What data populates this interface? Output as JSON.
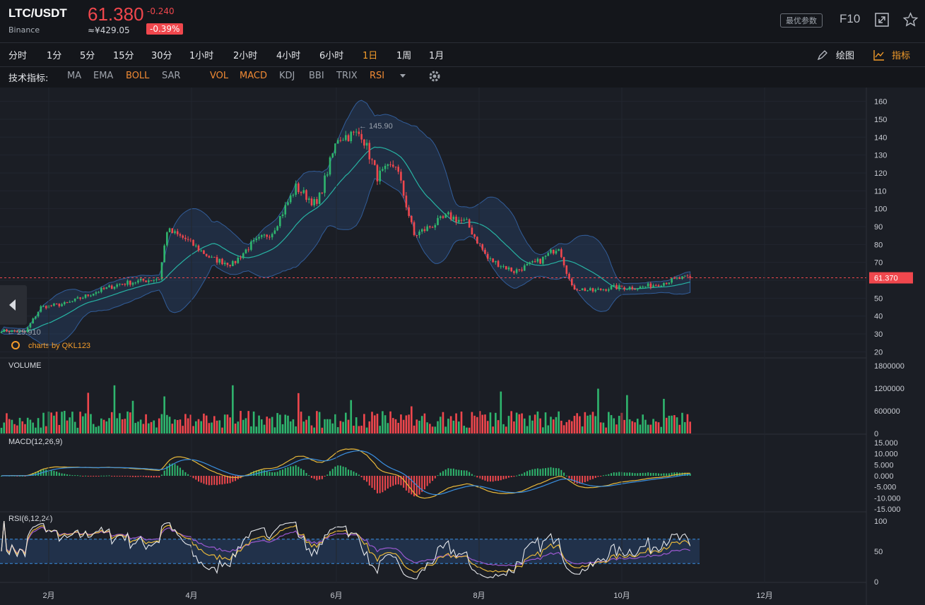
{
  "header": {
    "symbol": "LTC/USDT",
    "exchange": "Binance",
    "price": "61.380",
    "change": "-0.240",
    "cny": "≈¥429.05",
    "change_pct": "-0.39%",
    "best_params": "最优参数",
    "f10": "F10",
    "icons": [
      "expand-icon",
      "star-icon"
    ]
  },
  "timeframes": [
    {
      "label": "分时"
    },
    {
      "label": "1分"
    },
    {
      "label": "5分"
    },
    {
      "label": "15分"
    },
    {
      "label": "30分"
    },
    {
      "label": "1小时"
    },
    {
      "label": "2小时"
    },
    {
      "label": "4小时"
    },
    {
      "label": "6小时"
    },
    {
      "label": "1日",
      "active": true
    },
    {
      "label": "1周"
    },
    {
      "label": "1月"
    }
  ],
  "tools": {
    "draw": "绘图",
    "indicator": "指标"
  },
  "indicators": {
    "label": "技术指标:",
    "main": [
      {
        "label": "MA"
      },
      {
        "label": "EMA"
      },
      {
        "label": "BOLL",
        "active": true
      },
      {
        "label": "SAR"
      }
    ],
    "sub": [
      {
        "label": "VOL",
        "active": true
      },
      {
        "label": "MACD",
        "active": true
      },
      {
        "label": "KDJ"
      },
      {
        "label": "BBI"
      },
      {
        "label": "TRIX"
      },
      {
        "label": "RSI",
        "active": true
      }
    ]
  },
  "colors": {
    "up": "#2fb66e",
    "down": "#f0474d",
    "accent": "#f39c2a",
    "boll_mid": "#27b3a3",
    "boll_band": "#3a75c4",
    "dif": "#e8b83a",
    "dea": "#3a8fe0"
  },
  "chart_data": {
    "type": "candlestick",
    "watermark": "charts by QKL123",
    "last_price_label": "61.370",
    "max_label": "145.90",
    "min_label": "29.910",
    "price_ticks": [
      "160",
      "150",
      "140",
      "130",
      "120",
      "110",
      "100",
      "90",
      "80",
      "70",
      "60",
      "50",
      "40",
      "30",
      "20"
    ],
    "ylim": [
      17,
      163
    ],
    "x_ticks": [
      "2月",
      "4月",
      "6月",
      "8月",
      "10月",
      "12月"
    ],
    "anchors": [
      {
        "i": 0,
        "p": 32
      },
      {
        "i": 9,
        "p": 31
      },
      {
        "i": 15,
        "p": 45
      },
      {
        "i": 25,
        "p": 47
      },
      {
        "i": 35,
        "p": 53
      },
      {
        "i": 45,
        "p": 58
      },
      {
        "i": 55,
        "p": 60
      },
      {
        "i": 60,
        "p": 61
      },
      {
        "i": 63,
        "p": 88
      },
      {
        "i": 70,
        "p": 83
      },
      {
        "i": 80,
        "p": 72
      },
      {
        "i": 88,
        "p": 69
      },
      {
        "i": 95,
        "p": 80
      },
      {
        "i": 103,
        "p": 87
      },
      {
        "i": 112,
        "p": 112
      },
      {
        "i": 120,
        "p": 102
      },
      {
        "i": 128,
        "p": 140
      },
      {
        "i": 137,
        "p": 142
      },
      {
        "i": 143,
        "p": 118
      },
      {
        "i": 150,
        "p": 125
      },
      {
        "i": 157,
        "p": 85
      },
      {
        "i": 163,
        "p": 90
      },
      {
        "i": 170,
        "p": 96
      },
      {
        "i": 177,
        "p": 92
      },
      {
        "i": 185,
        "p": 72
      },
      {
        "i": 195,
        "p": 65
      },
      {
        "i": 205,
        "p": 71
      },
      {
        "i": 212,
        "p": 79
      },
      {
        "i": 217,
        "p": 56
      },
      {
        "i": 225,
        "p": 54
      },
      {
        "i": 232,
        "p": 56
      },
      {
        "i": 243,
        "p": 56
      },
      {
        "i": 250,
        "p": 58
      },
      {
        "i": 258,
        "p": 61
      },
      {
        "i": 262,
        "p": 61.37
      }
    ],
    "volume": {
      "label": "VOLUME",
      "ticks": [
        "1800000",
        "1200000",
        "600000",
        "0"
      ],
      "ylim": [
        0,
        1800000
      ]
    },
    "macd": {
      "label": "MACD(12,26,9)",
      "ticks": [
        "15.000",
        "10.000",
        "5.000",
        "0.000",
        "-5.000",
        "-10.000",
        "-15.000"
      ],
      "ylim": [
        -15,
        15
      ]
    },
    "rsi": {
      "label": "RSI(6,12,24)",
      "ticks": [
        "100",
        "50",
        "0"
      ],
      "ylim": [
        0,
        100
      ],
      "bands": [
        70,
        30
      ]
    }
  }
}
